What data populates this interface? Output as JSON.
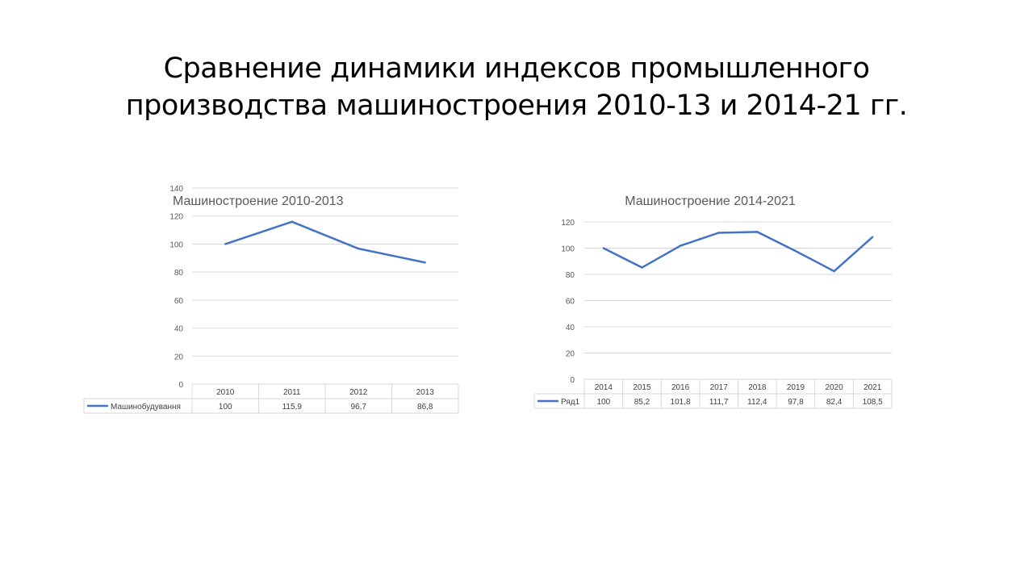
{
  "slide": {
    "title_line1": "Сравнение динамики индексов промышленного",
    "title_line2": "производства машиностроения 2010-13 и 2014-21 гг."
  },
  "chart_data": [
    {
      "type": "line",
      "title": "Машиностроение 2010-2013",
      "categories": [
        "2010",
        "2011",
        "2012",
        "2013"
      ],
      "series": [
        {
          "name": "Машинобудування",
          "values": [
            100,
            115.9,
            96.7,
            86.8
          ],
          "labels": [
            "100",
            "115,9",
            "96,7",
            "86,8"
          ],
          "color": "#4472c4"
        }
      ],
      "yticks": [
        "0",
        "20",
        "40",
        "60",
        "80",
        "100",
        "120",
        "140"
      ],
      "ylim": [
        0,
        140
      ],
      "grid": true,
      "data_table": true
    },
    {
      "type": "line",
      "title": "Машиностроение 2014-2021",
      "categories": [
        "2014",
        "2015",
        "2016",
        "2017",
        "2018",
        "2019",
        "2020",
        "2021"
      ],
      "series": [
        {
          "name": "Ряд1",
          "values": [
            100,
            85.2,
            101.8,
            111.7,
            112.4,
            97.8,
            82.4,
            108.5
          ],
          "labels": [
            "100",
            "85,2",
            "101,8",
            "111,7",
            "112,4",
            "97,8",
            "82,4",
            "108,5"
          ],
          "color": "#4472c4"
        }
      ],
      "yticks": [
        "0",
        "20",
        "40",
        "60",
        "80",
        "100",
        "120"
      ],
      "ylim": [
        0,
        120
      ],
      "grid": true,
      "data_table": true
    }
  ]
}
